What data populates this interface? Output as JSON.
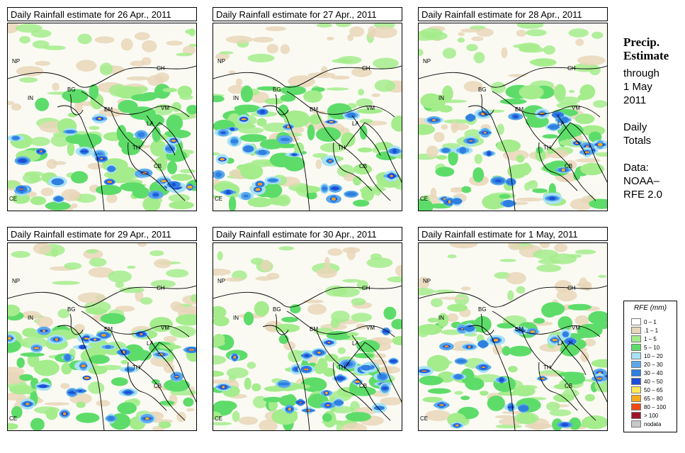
{
  "panels": [
    {
      "title": "Daily Rainfall estimate for  26 Apr., 2011"
    },
    {
      "title": "Daily Rainfall estimate for  27 Apr., 2011"
    },
    {
      "title": "Daily Rainfall estimate for  28 Apr., 2011"
    },
    {
      "title": "Daily Rainfall estimate for  29 Apr., 2011"
    },
    {
      "title": "Daily Rainfall estimate for  30 Apr., 2011"
    },
    {
      "title": "Daily Rainfall estimate for  1 May, 2011"
    }
  ],
  "country_labels": {
    "np": "NP",
    "in": "IN",
    "bg": "BG",
    "ch": "CH",
    "bm": "BM",
    "la": "LA",
    "vm": "VM",
    "th": "TH",
    "cb": "CB",
    "ce": "CE"
  },
  "side": {
    "heading1": "Precip.",
    "heading2": "Estimate",
    "through": "through",
    "date1": "1 May",
    "date2": "2011",
    "daily1": "Daily",
    "daily2": "Totals",
    "data1": "Data:",
    "data2": "NOAA–",
    "data3": "RFE 2.0"
  },
  "legend": {
    "title": "RFE (mm)",
    "items": [
      {
        "label": "0 – 1",
        "color": "#ffffff"
      },
      {
        "label": ".1 – 1",
        "color": "#e8d6b8"
      },
      {
        "label": "1 – 5",
        "color": "#a4ec8c"
      },
      {
        "label": "5 – 10",
        "color": "#5edc6a"
      },
      {
        "label": "10 – 20",
        "color": "#a8e2f4"
      },
      {
        "label": "20 – 30",
        "color": "#5aa8ea"
      },
      {
        "label": "30 – 40",
        "color": "#2f7fe0"
      },
      {
        "label": "40 – 50",
        "color": "#1f4ed8"
      },
      {
        "label": "50 – 65",
        "color": "#ffe85a"
      },
      {
        "label": "65 – 80",
        "color": "#ffaa1e"
      },
      {
        "label": "80 – 100",
        "color": "#f04a14"
      },
      {
        "label": "> 100",
        "color": "#a0142a"
      },
      {
        "label": "nodata",
        "color": "#c8c8c8"
      }
    ]
  }
}
